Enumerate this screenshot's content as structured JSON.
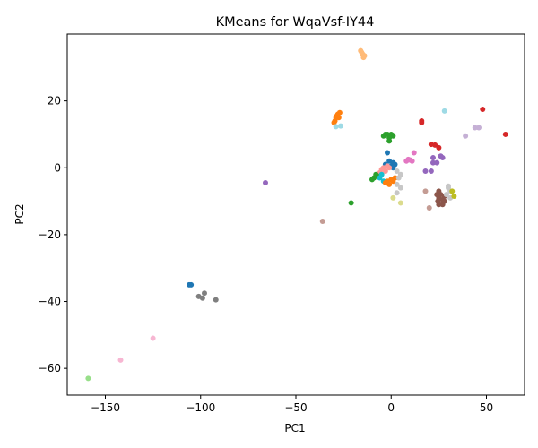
{
  "chart_data": {
    "type": "scatter",
    "title": "KMeans for WqaVsf-IY44",
    "xlabel": "PC1",
    "ylabel": "PC2",
    "xlim": [
      -170,
      70
    ],
    "ylim": [
      -68,
      40
    ],
    "xticks": [
      -150,
      -100,
      -50,
      0,
      50
    ],
    "yticks": [
      -60,
      -40,
      -20,
      0,
      20
    ],
    "xtick_labels": [
      "−150",
      "−100",
      "−50",
      "0",
      "50"
    ],
    "ytick_labels": [
      "−60",
      "−40",
      "−20",
      "0",
      "20"
    ],
    "grid": false,
    "points": [
      {
        "x": -16,
        "y": 35,
        "color": "#ffbb78"
      },
      {
        "x": -15,
        "y": 34,
        "color": "#ffbb78"
      },
      {
        "x": -14.5,
        "y": 33,
        "color": "#ffbb78"
      },
      {
        "x": -15.5,
        "y": 34.5,
        "color": "#ffbb78"
      },
      {
        "x": -14,
        "y": 33.5,
        "color": "#ffbb78"
      },
      {
        "x": -29,
        "y": 15,
        "color": "#ff7f0e"
      },
      {
        "x": -28,
        "y": 16,
        "color": "#ff7f0e"
      },
      {
        "x": -27,
        "y": 16.5,
        "color": "#ff7f0e"
      },
      {
        "x": -29.5,
        "y": 14,
        "color": "#ff7f0e"
      },
      {
        "x": -28.5,
        "y": 15.5,
        "color": "#ff7f0e"
      },
      {
        "x": -30,
        "y": 13.5,
        "color": "#ff7f0e"
      },
      {
        "x": -27.5,
        "y": 15,
        "color": "#ff7f0e"
      },
      {
        "x": -29,
        "y": 12.3,
        "color": "#9edae5"
      },
      {
        "x": -26.5,
        "y": 12.5,
        "color": "#9edae5"
      },
      {
        "x": 28,
        "y": 17,
        "color": "#9edae5"
      },
      {
        "x": 48,
        "y": 17.5,
        "color": "#d62728"
      },
      {
        "x": 60,
        "y": 10,
        "color": "#d62728"
      },
      {
        "x": 16,
        "y": 14,
        "color": "#d62728"
      },
      {
        "x": 16,
        "y": 13.5,
        "color": "#d62728"
      },
      {
        "x": 21,
        "y": 7,
        "color": "#d62728"
      },
      {
        "x": 23,
        "y": 6.8,
        "color": "#d62728"
      },
      {
        "x": 25,
        "y": 6,
        "color": "#d62728"
      },
      {
        "x": -4,
        "y": 9.5,
        "color": "#2ca02c"
      },
      {
        "x": -2,
        "y": 10,
        "color": "#2ca02c"
      },
      {
        "x": 0,
        "y": 10,
        "color": "#2ca02c"
      },
      {
        "x": 1,
        "y": 9.5,
        "color": "#2ca02c"
      },
      {
        "x": -1,
        "y": 9,
        "color": "#2ca02c"
      },
      {
        "x": -3,
        "y": 10,
        "color": "#2ca02c"
      },
      {
        "x": -1,
        "y": 8,
        "color": "#2ca02c"
      },
      {
        "x": 0.5,
        "y": 9.8,
        "color": "#2ca02c"
      },
      {
        "x": 39,
        "y": 9.5,
        "color": "#c5b0d5"
      },
      {
        "x": 44,
        "y": 12,
        "color": "#c5b0d5"
      },
      {
        "x": 46,
        "y": 12,
        "color": "#c5b0d5"
      },
      {
        "x": 12,
        "y": 4.5,
        "color": "#e377c2"
      },
      {
        "x": 9,
        "y": 2.5,
        "color": "#e377c2"
      },
      {
        "x": 11,
        "y": 2,
        "color": "#e377c2"
      },
      {
        "x": 10,
        "y": 2.3,
        "color": "#e377c2"
      },
      {
        "x": 8,
        "y": 2,
        "color": "#e377c2"
      },
      {
        "x": 22,
        "y": 3,
        "color": "#9467bd"
      },
      {
        "x": 26,
        "y": 3.5,
        "color": "#9467bd"
      },
      {
        "x": 27,
        "y": 3,
        "color": "#9467bd"
      },
      {
        "x": 22,
        "y": 1.5,
        "color": "#9467bd"
      },
      {
        "x": 24,
        "y": 1.5,
        "color": "#9467bd"
      },
      {
        "x": 18,
        "y": -1,
        "color": "#9467bd"
      },
      {
        "x": 21,
        "y": -1,
        "color": "#9467bd"
      },
      {
        "x": -66,
        "y": -4.5,
        "color": "#9467bd"
      },
      {
        "x": -3,
        "y": 1,
        "color": "#1f77b4"
      },
      {
        "x": 0,
        "y": 0.5,
        "color": "#1f77b4"
      },
      {
        "x": 1,
        "y": 1.5,
        "color": "#1f77b4"
      },
      {
        "x": 2,
        "y": 1,
        "color": "#1f77b4"
      },
      {
        "x": -1,
        "y": 2,
        "color": "#1f77b4"
      },
      {
        "x": -2,
        "y": 4.5,
        "color": "#1f77b4"
      },
      {
        "x": 1,
        "y": 0,
        "color": "#1f77b4"
      },
      {
        "x": -4,
        "y": 0,
        "color": "#ff9896"
      },
      {
        "x": -5,
        "y": -0.5,
        "color": "#ff9896"
      },
      {
        "x": -3,
        "y": -1,
        "color": "#ff9896"
      },
      {
        "x": -6,
        "y": -1.5,
        "color": "#ff9896"
      },
      {
        "x": -2,
        "y": 0.5,
        "color": "#ff9896"
      },
      {
        "x": -1,
        "y": 0,
        "color": "#ff9896"
      },
      {
        "x": -9,
        "y": -3,
        "color": "#2ca02c"
      },
      {
        "x": -7,
        "y": -2.5,
        "color": "#2ca02c"
      },
      {
        "x": -10,
        "y": -3.5,
        "color": "#2ca02c"
      },
      {
        "x": -8,
        "y": -2,
        "color": "#2ca02c"
      },
      {
        "x": -21,
        "y": -10.5,
        "color": "#2ca02c"
      },
      {
        "x": -6,
        "y": -3,
        "color": "#17becf"
      },
      {
        "x": -5,
        "y": -2,
        "color": "#17becf"
      },
      {
        "x": -4,
        "y": -4,
        "color": "#17becf"
      },
      {
        "x": -2,
        "y": -4,
        "color": "#ff7f0e"
      },
      {
        "x": 0,
        "y": -3.5,
        "color": "#ff7f0e"
      },
      {
        "x": 1,
        "y": -4,
        "color": "#ff7f0e"
      },
      {
        "x": -1,
        "y": -5,
        "color": "#ff7f0e"
      },
      {
        "x": 2,
        "y": -3,
        "color": "#ff7f0e"
      },
      {
        "x": -3,
        "y": -4.5,
        "color": "#ff7f0e"
      },
      {
        "x": 3,
        "y": -1,
        "color": "#c7c7c7"
      },
      {
        "x": 4,
        "y": -3,
        "color": "#c7c7c7"
      },
      {
        "x": 3,
        "y": -5,
        "color": "#c7c7c7"
      },
      {
        "x": 5,
        "y": -6,
        "color": "#c7c7c7"
      },
      {
        "x": 3,
        "y": -7.5,
        "color": "#c7c7c7"
      },
      {
        "x": 5,
        "y": -2,
        "color": "#c7c7c7"
      },
      {
        "x": 1,
        "y": -9,
        "color": "#dbdb8d"
      },
      {
        "x": 5,
        "y": -10.5,
        "color": "#dbdb8d"
      },
      {
        "x": 18,
        "y": -7,
        "color": "#c49c94"
      },
      {
        "x": 20,
        "y": -12,
        "color": "#c49c94"
      },
      {
        "x": -36,
        "y": -16,
        "color": "#c49c94"
      },
      {
        "x": 25,
        "y": -7,
        "color": "#8c564b"
      },
      {
        "x": 26,
        "y": -8,
        "color": "#8c564b"
      },
      {
        "x": 24,
        "y": -8,
        "color": "#8c564b"
      },
      {
        "x": 25,
        "y": -9,
        "color": "#8c564b"
      },
      {
        "x": 27,
        "y": -9.5,
        "color": "#8c564b"
      },
      {
        "x": 28,
        "y": -8.5,
        "color": "#8c564b"
      },
      {
        "x": 25,
        "y": -11,
        "color": "#8c564b"
      },
      {
        "x": 27,
        "y": -11,
        "color": "#8c564b"
      },
      {
        "x": 24.5,
        "y": -10,
        "color": "#8c564b"
      },
      {
        "x": 28,
        "y": -10,
        "color": "#8c564b"
      },
      {
        "x": 30,
        "y": -5.5,
        "color": "#c7c7c7"
      },
      {
        "x": 31,
        "y": -7,
        "color": "#c7c7c7"
      },
      {
        "x": 29,
        "y": -8,
        "color": "#c7c7c7"
      },
      {
        "x": 31,
        "y": -9,
        "color": "#c7c7c7"
      },
      {
        "x": 30,
        "y": -6,
        "color": "#c7c7c7"
      },
      {
        "x": 32,
        "y": -7,
        "color": "#bcbd22"
      },
      {
        "x": 33,
        "y": -8.5,
        "color": "#bcbd22"
      },
      {
        "x": -105,
        "y": -35,
        "color": "#1f77b4"
      },
      {
        "x": -106,
        "y": -35,
        "color": "#1f77b4"
      },
      {
        "x": -101,
        "y": -38.5,
        "color": "#7f7f7f"
      },
      {
        "x": -99,
        "y": -39,
        "color": "#7f7f7f"
      },
      {
        "x": -98,
        "y": -37.5,
        "color": "#7f7f7f"
      },
      {
        "x": -92,
        "y": -39.5,
        "color": "#7f7f7f"
      },
      {
        "x": -125,
        "y": -51,
        "color": "#f7b6d2"
      },
      {
        "x": -142,
        "y": -57.5,
        "color": "#f7b6d2"
      },
      {
        "x": -159,
        "y": -63,
        "color": "#98df8a"
      }
    ]
  }
}
